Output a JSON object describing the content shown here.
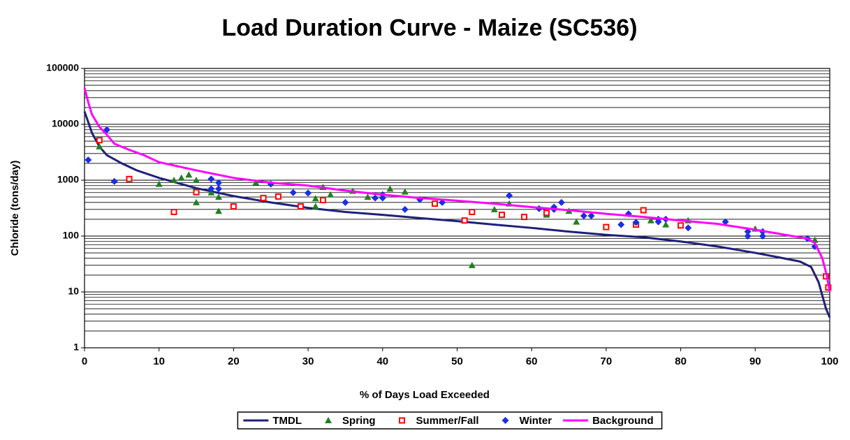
{
  "chart_data": {
    "type": "combo",
    "title": "Load Duration Curve - Maize (SC536)",
    "x_label": "% of Days Load Exceeded",
    "y_label": "Chloride (tons/day)",
    "log_y": true,
    "grid": true,
    "minor_grid": true,
    "legend": "bottom",
    "xlim": [
      0,
      100
    ],
    "xticks": [
      0,
      10,
      20,
      30,
      40,
      50,
      60,
      70,
      80,
      90,
      100
    ],
    "ylim": [
      1,
      100000
    ],
    "yticks": [
      1,
      10,
      100,
      1000,
      10000,
      100000
    ],
    "series": [
      {
        "name": "TMDL",
        "type": "line",
        "color": "#1f1f7a",
        "x": [
          0,
          0.5,
          1,
          2,
          3,
          5,
          7,
          10,
          15,
          20,
          25,
          30,
          35,
          40,
          45,
          50,
          55,
          60,
          65,
          70,
          75,
          80,
          85,
          90,
          93,
          96,
          97.5,
          98.5,
          99.5,
          100
        ],
        "values": [
          17000,
          11000,
          7000,
          4000,
          2800,
          2000,
          1500,
          1100,
          720,
          520,
          400,
          320,
          270,
          240,
          210,
          185,
          160,
          140,
          120,
          105,
          95,
          80,
          65,
          50,
          42,
          35,
          28,
          15,
          5,
          3.5
        ]
      },
      {
        "name": "Spring",
        "type": "scatter",
        "marker": "triangle",
        "color": "#208020",
        "x": [
          2,
          10,
          12,
          13,
          14,
          15,
          15,
          17,
          18,
          18,
          23,
          31,
          31,
          32,
          33,
          36,
          38,
          41,
          43,
          52,
          55,
          57,
          62,
          65,
          66,
          76,
          78,
          81,
          90,
          98
        ],
        "values": [
          4000,
          850,
          1000,
          1100,
          1250,
          1000,
          400,
          600,
          500,
          280,
          900,
          340,
          470,
          750,
          550,
          640,
          500,
          700,
          620,
          30,
          300,
          380,
          240,
          280,
          180,
          190,
          160,
          190,
          135,
          85
        ]
      },
      {
        "name": "Summer/Fall",
        "type": "scatter",
        "marker": "square",
        "color": "#ff0000",
        "x": [
          2,
          6,
          12,
          15,
          20,
          24,
          26,
          29,
          32,
          47,
          51,
          52,
          56,
          59,
          62,
          70,
          74,
          75,
          80,
          99.5,
          99.8
        ],
        "values": [
          5200,
          1050,
          270,
          610,
          340,
          480,
          510,
          340,
          440,
          380,
          190,
          270,
          240,
          220,
          260,
          145,
          160,
          290,
          155,
          19,
          12
        ]
      },
      {
        "name": "Winter",
        "type": "scatter",
        "marker": "diamond",
        "color": "#1a2ee6",
        "x": [
          0.5,
          3,
          4,
          17,
          17,
          18,
          18,
          25,
          28,
          30,
          35,
          39,
          40,
          40,
          43,
          45,
          48,
          57,
          61,
          63,
          63,
          64,
          67,
          68,
          72,
          73,
          74,
          77,
          77,
          78,
          81,
          86,
          89,
          89,
          91,
          91,
          97,
          98
        ],
        "values": [
          2300,
          8000,
          950,
          1050,
          700,
          900,
          700,
          850,
          600,
          590,
          400,
          480,
          550,
          480,
          300,
          450,
          400,
          530,
          310,
          330,
          300,
          400,
          230,
          230,
          160,
          250,
          175,
          200,
          180,
          200,
          140,
          180,
          120,
          100,
          120,
          100,
          90,
          65
        ]
      },
      {
        "name": "Background",
        "type": "line",
        "color": "#ff00ff",
        "x": [
          0,
          0.5,
          1,
          2,
          3,
          4,
          6,
          8,
          10,
          15,
          20,
          25,
          30,
          35,
          40,
          45,
          50,
          55,
          60,
          65,
          70,
          75,
          80,
          85,
          90,
          95,
          97,
          98,
          99,
          99.6,
          100
        ],
        "values": [
          45000,
          25000,
          15000,
          9000,
          6500,
          4500,
          3500,
          2800,
          2100,
          1500,
          1100,
          900,
          800,
          650,
          550,
          480,
          430,
          380,
          330,
          290,
          250,
          220,
          190,
          165,
          130,
          100,
          90,
          75,
          40,
          20,
          10
        ]
      }
    ]
  }
}
